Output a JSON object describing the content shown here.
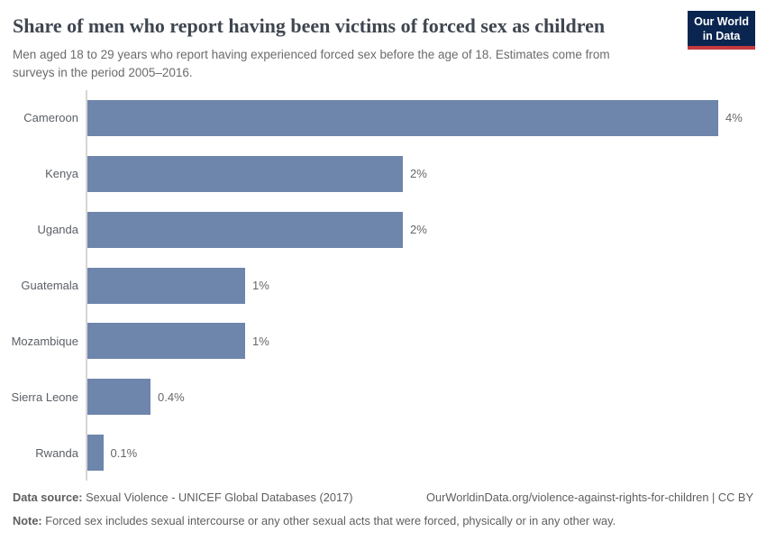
{
  "header": {
    "title": "Share of men who report having been victims of forced sex as children",
    "subtitle": "Men aged 18 to 29 years who report having experienced forced sex before the age of 18. Estimates come from surveys in the period 2005–2016.",
    "logo": {
      "line1": "Our World",
      "line2": "in Data",
      "bg_color": "#0a2550",
      "stripe_color": "#c5393f"
    }
  },
  "chart_data": {
    "type": "bar",
    "orientation": "horizontal",
    "title": "Share of men who report having been victims of forced sex as children",
    "categories": [
      "Cameroon",
      "Kenya",
      "Uganda",
      "Guatemala",
      "Mozambique",
      "Sierra Leone",
      "Rwanda"
    ],
    "values": [
      4,
      2,
      2,
      1,
      1,
      0.4,
      0.1
    ],
    "value_labels": [
      "4%",
      "2%",
      "2%",
      "1%",
      "1%",
      "0.4%",
      "0.1%"
    ],
    "xlim": [
      0,
      4
    ],
    "grid": false,
    "legend": "none",
    "bar_color": "#6e85ac",
    "axis_color": "#d6d6d6"
  },
  "footer": {
    "data_source_label": "Data source:",
    "data_source_text": "Sexual Violence - UNICEF Global Databases (2017)",
    "attribution": "OurWorldinData.org/violence-against-rights-for-children | CC BY",
    "note_label": "Note:",
    "note_text": "Forced sex includes sexual intercourse or any other sexual acts that were forced, physically or in any other way."
  }
}
